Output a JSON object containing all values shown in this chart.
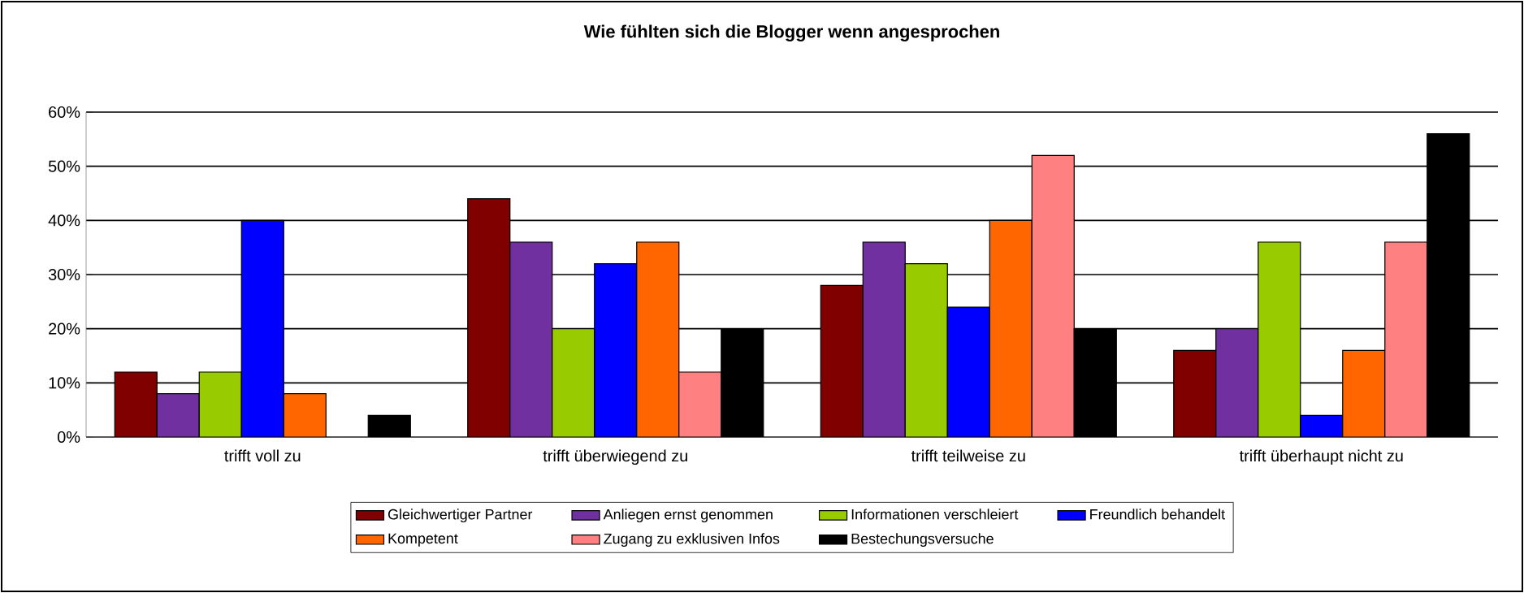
{
  "chart_data": {
    "type": "bar",
    "title": "Wie fühlten sich die Blogger wenn angesprochen",
    "categories": [
      "trifft voll zu",
      "trifft überwiegend zu",
      "trifft teilweise zu",
      "trifft überhaupt nicht zu"
    ],
    "series": [
      {
        "name": "Gleichwertiger Partner",
        "color": "#800000",
        "values": [
          12,
          44,
          28,
          16
        ]
      },
      {
        "name": "Anliegen ernst genommen",
        "color": "#7030a0",
        "values": [
          8,
          36,
          36,
          20
        ]
      },
      {
        "name": "Informationen verschleiert",
        "color": "#99cc00",
        "values": [
          12,
          20,
          32,
          36
        ]
      },
      {
        "name": "Freundlich behandelt",
        "color": "#0000ff",
        "values": [
          40,
          32,
          24,
          4
        ]
      },
      {
        "name": "Kompetent",
        "color": "#ff6600",
        "values": [
          8,
          36,
          40,
          16
        ]
      },
      {
        "name": "Zugang zu exklusiven Infos",
        "color": "#ff8080",
        "values": [
          null,
          12,
          52,
          36
        ]
      },
      {
        "name": "Bestechungsversuche",
        "color": "#000000",
        "values": [
          4,
          20,
          20,
          56
        ]
      }
    ],
    "ylim": [
      0,
      60
    ],
    "yticks": [
      {
        "value": 0,
        "label": "0%"
      },
      {
        "value": 10,
        "label": "10%"
      },
      {
        "value": 20,
        "label": "20%"
      },
      {
        "value": 30,
        "label": "30%"
      },
      {
        "value": 40,
        "label": "40%"
      },
      {
        "value": 50,
        "label": "50%"
      },
      {
        "value": 60,
        "label": "60%"
      }
    ],
    "grid": "y",
    "legend": "bottom"
  }
}
